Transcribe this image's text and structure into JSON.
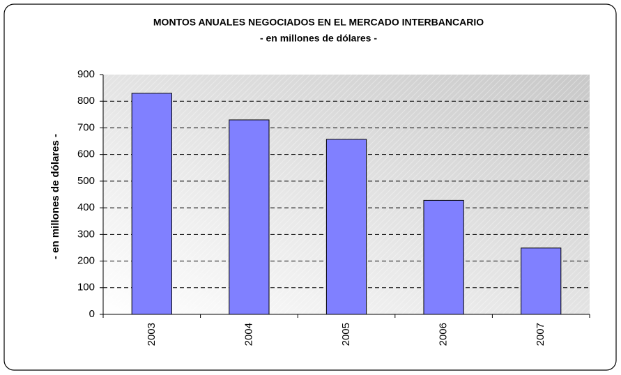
{
  "chart_data": {
    "type": "bar",
    "title": "MONTOS ANUALES NEGOCIADOS EN EL MERCADO INTERBANCARIO",
    "subtitle": "- en millones de dólares -",
    "y_label": "- en millones de dólares -",
    "categories": [
      "2003",
      "2004",
      "2005",
      "2006",
      "2007"
    ],
    "values": [
      830,
      730,
      657,
      428,
      249
    ],
    "color": "#8080ff",
    "ylim": [
      0,
      900
    ],
    "yticks": [
      0,
      100,
      200,
      300,
      400,
      500,
      600,
      700,
      800,
      900
    ],
    "grid": true
  }
}
